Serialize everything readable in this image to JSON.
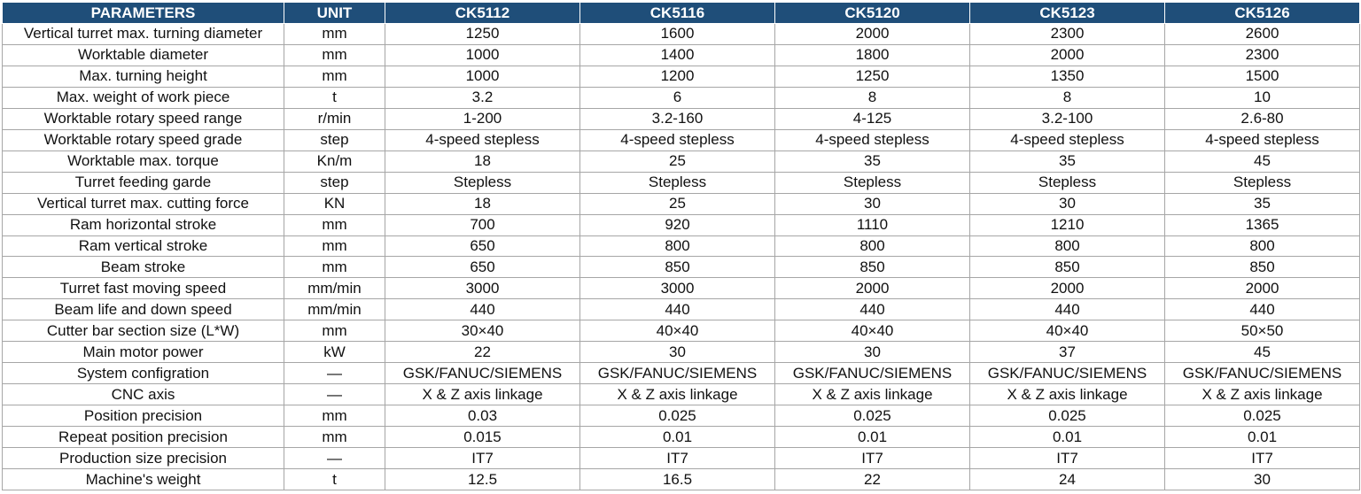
{
  "header": {
    "parameters": "PARAMETERS",
    "unit": "UNIT",
    "models": [
      "CK5112",
      "CK5116",
      "CK5120",
      "CK5123",
      "CK5126"
    ]
  },
  "colors": {
    "header_bg": "#1f4e79",
    "header_text": "#ffffff",
    "grid": "#a6a6a6"
  },
  "rows": [
    {
      "param": "Vertical turret max. turning diameter",
      "unit": "mm",
      "values": [
        "1250",
        "1600",
        "2000",
        "2300",
        "2600"
      ]
    },
    {
      "param": "Worktable diameter",
      "unit": "mm",
      "values": [
        "1000",
        "1400",
        "1800",
        "2000",
        "2300"
      ]
    },
    {
      "param": "Max. turning height",
      "unit": "mm",
      "values": [
        "1000",
        "1200",
        "1250",
        "1350",
        "1500"
      ]
    },
    {
      "param": "Max. weight of work piece",
      "unit": "t",
      "values": [
        "3.2",
        "6",
        "8",
        "8",
        "10"
      ]
    },
    {
      "param": "Worktable rotary speed range",
      "unit": "r/min",
      "values": [
        "1-200",
        "3.2-160",
        "4-125",
        "3.2-100",
        "2.6-80"
      ]
    },
    {
      "param": "Worktable rotary speed grade",
      "unit": "step",
      "values": [
        "4-speed stepless",
        "4-speed stepless",
        "4-speed stepless",
        "4-speed stepless",
        "4-speed stepless"
      ]
    },
    {
      "param": "Worktable max. torque",
      "unit": "Kn/m",
      "values": [
        "18",
        "25",
        "35",
        "35",
        "45"
      ]
    },
    {
      "param": "Turret feeding garde",
      "unit": "step",
      "values": [
        "Stepless",
        "Stepless",
        "Stepless",
        "Stepless",
        "Stepless"
      ]
    },
    {
      "param": "Vertical turret max. cutting force",
      "unit": "KN",
      "values": [
        "18",
        "25",
        "30",
        "30",
        "35"
      ]
    },
    {
      "param": "Ram horizontal stroke",
      "unit": "mm",
      "values": [
        "700",
        "920",
        "1110",
        "1210",
        "1365"
      ]
    },
    {
      "param": "Ram vertical stroke",
      "unit": "mm",
      "values": [
        "650",
        "800",
        "800",
        "800",
        "800"
      ]
    },
    {
      "param": "Beam stroke",
      "unit": "mm",
      "values": [
        "650",
        "850",
        "850",
        "850",
        "850"
      ]
    },
    {
      "param": "Turret fast moving speed",
      "unit": "mm/min",
      "values": [
        "3000",
        "3000",
        "2000",
        "2000",
        "2000"
      ]
    },
    {
      "param": "Beam life and down speed",
      "unit": "mm/min",
      "values": [
        "440",
        "440",
        "440",
        "440",
        "440"
      ]
    },
    {
      "param": "Cutter bar section size (L*W)",
      "unit": "mm",
      "values": [
        "30×40",
        "40×40",
        "40×40",
        "40×40",
        "50×50"
      ]
    },
    {
      "param": "Main motor power",
      "unit": "kW",
      "values": [
        "22",
        "30",
        "30",
        "37",
        "45"
      ]
    },
    {
      "param": "System configration",
      "unit": "—",
      "values": [
        "GSK/FANUC/SIEMENS",
        "GSK/FANUC/SIEMENS",
        "GSK/FANUC/SIEMENS",
        "GSK/FANUC/SIEMENS",
        "GSK/FANUC/SIEMENS"
      ]
    },
    {
      "param": "CNC axis",
      "unit": "—",
      "values": [
        "X & Z axis linkage",
        "X & Z axis linkage",
        "X & Z axis linkage",
        "X & Z axis linkage",
        "X & Z axis linkage"
      ]
    },
    {
      "param": "Position precision",
      "unit": "mm",
      "values": [
        "0.03",
        "0.025",
        "0.025",
        "0.025",
        "0.025"
      ]
    },
    {
      "param": "Repeat position precision",
      "unit": "mm",
      "values": [
        "0.015",
        "0.01",
        "0.01",
        "0.01",
        "0.01"
      ]
    },
    {
      "param": "Production size precision",
      "unit": "—",
      "values": [
        "IT7",
        "IT7",
        "IT7",
        "IT7",
        "IT7"
      ]
    },
    {
      "param": "Machine's weight",
      "unit": "t",
      "values": [
        "12.5",
        "16.5",
        "22",
        "24",
        "30"
      ]
    }
  ]
}
